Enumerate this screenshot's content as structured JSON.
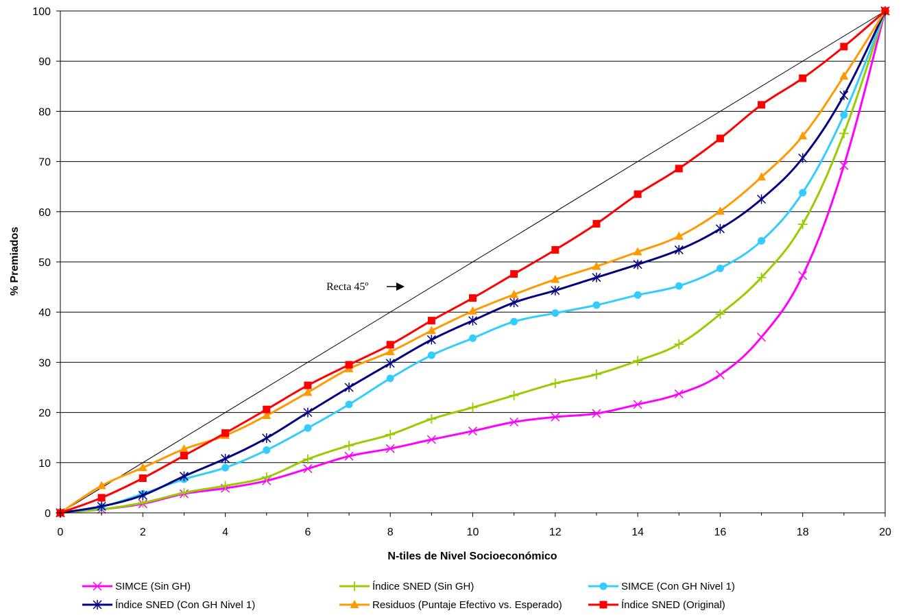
{
  "chart_data": {
    "type": "line",
    "title": "",
    "xlabel": "N-tiles de Nivel Socioeconómico",
    "ylabel": "% Premiados",
    "xlim": [
      0,
      20
    ],
    "ylim": [
      0,
      100
    ],
    "x_ticks": [
      "0",
      "2",
      "4",
      "6",
      "8",
      "10",
      "12",
      "14",
      "16",
      "18",
      "20"
    ],
    "y_ticks": [
      "0",
      "10",
      "20",
      "30",
      "40",
      "50",
      "60",
      "70",
      "80",
      "90",
      "100"
    ],
    "grid": "horizontal",
    "legend_position": "bottom",
    "annotation": "Recta 45º",
    "x": [
      0,
      1,
      2,
      3,
      4,
      5,
      6,
      7,
      8,
      9,
      10,
      11,
      12,
      13,
      14,
      15,
      16,
      17,
      18,
      19,
      20
    ],
    "reference_line": {
      "from": [
        0,
        0
      ],
      "to": [
        20,
        100
      ],
      "color": "#000000"
    },
    "series": [
      {
        "name": "SIMCE (Sin GH)",
        "color": "#ff00ff",
        "marker": "x",
        "values": [
          0,
          0.7,
          1.8,
          3.8,
          4.9,
          6.4,
          8.8,
          11.3,
          12.8,
          14.6,
          16.3,
          18.1,
          19.1,
          19.8,
          21.6,
          23.7,
          27.5,
          35.0,
          47.3,
          69.2,
          100
        ]
      },
      {
        "name": "Índice SNED (Sin GH)",
        "color": "#99cc00",
        "marker": "plus",
        "values": [
          0,
          0.7,
          2.0,
          4.0,
          5.4,
          7.1,
          10.7,
          13.4,
          15.6,
          18.7,
          21.0,
          23.4,
          25.8,
          27.6,
          30.3,
          33.6,
          39.6,
          46.9,
          57.5,
          75.6,
          100
        ]
      },
      {
        "name": "SIMCE (Con GH Nivel 1)",
        "color": "#33ccff",
        "marker": "circle",
        "values": [
          0,
          1.2,
          3.8,
          6.7,
          9.0,
          12.5,
          16.9,
          21.6,
          26.8,
          31.4,
          34.8,
          38.1,
          39.8,
          41.4,
          43.4,
          45.2,
          48.7,
          54.2,
          63.8,
          79.3,
          100
        ]
      },
      {
        "name": "Índice SNED (Con GH Nivel 1)",
        "color": "#000080",
        "marker": "star",
        "values": [
          0,
          1.3,
          3.5,
          7.3,
          10.8,
          14.9,
          20.0,
          25.0,
          29.8,
          34.5,
          38.3,
          41.9,
          44.3,
          46.9,
          49.5,
          52.4,
          56.6,
          62.5,
          70.7,
          83.2,
          100
        ]
      },
      {
        "name": "Residuos (Puntaje Efectivo vs. Esperado)",
        "color": "#ff9900",
        "marker": "triangle",
        "values": [
          0,
          5.4,
          9.0,
          12.7,
          15.4,
          19.4,
          24.0,
          28.7,
          32.1,
          36.3,
          40.2,
          43.5,
          46.5,
          49.1,
          52.0,
          55.1,
          60.1,
          66.9,
          75.1,
          87.0,
          100
        ]
      },
      {
        "name": "Índice SNED (Original)",
        "color": "#ff0000",
        "marker": "square",
        "values": [
          0,
          3.0,
          6.9,
          11.4,
          15.9,
          20.6,
          25.4,
          29.5,
          33.5,
          38.3,
          42.8,
          47.6,
          52.4,
          57.6,
          63.5,
          68.6,
          74.6,
          81.3,
          86.6,
          92.9,
          100
        ]
      }
    ]
  }
}
